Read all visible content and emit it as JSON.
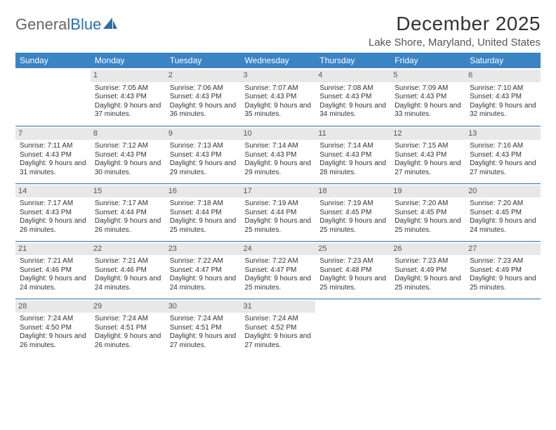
{
  "logo": {
    "part1": "General",
    "part2": "Blue"
  },
  "title": "December 2025",
  "location": "Lake Shore, Maryland, United States",
  "colors": {
    "header_bg": "#3a84c4",
    "header_text": "#ffffff",
    "separator": "#2f6fa8",
    "daynum_bg": "#e8e8e8",
    "text": "#333333",
    "logo_accent": "#2f6fa8"
  },
  "day_headers": [
    "Sunday",
    "Monday",
    "Tuesday",
    "Wednesday",
    "Thursday",
    "Friday",
    "Saturday"
  ],
  "weeks": [
    [
      null,
      {
        "n": "1",
        "sr": "7:05 AM",
        "ss": "4:43 PM",
        "dl": "9 hours and 37 minutes."
      },
      {
        "n": "2",
        "sr": "7:06 AM",
        "ss": "4:43 PM",
        "dl": "9 hours and 36 minutes."
      },
      {
        "n": "3",
        "sr": "7:07 AM",
        "ss": "4:43 PM",
        "dl": "9 hours and 35 minutes."
      },
      {
        "n": "4",
        "sr": "7:08 AM",
        "ss": "4:43 PM",
        "dl": "9 hours and 34 minutes."
      },
      {
        "n": "5",
        "sr": "7:09 AM",
        "ss": "4:43 PM",
        "dl": "9 hours and 33 minutes."
      },
      {
        "n": "6",
        "sr": "7:10 AM",
        "ss": "4:43 PM",
        "dl": "9 hours and 32 minutes."
      }
    ],
    [
      {
        "n": "7",
        "sr": "7:11 AM",
        "ss": "4:43 PM",
        "dl": "9 hours and 31 minutes."
      },
      {
        "n": "8",
        "sr": "7:12 AM",
        "ss": "4:43 PM",
        "dl": "9 hours and 30 minutes."
      },
      {
        "n": "9",
        "sr": "7:13 AM",
        "ss": "4:43 PM",
        "dl": "9 hours and 29 minutes."
      },
      {
        "n": "10",
        "sr": "7:14 AM",
        "ss": "4:43 PM",
        "dl": "9 hours and 29 minutes."
      },
      {
        "n": "11",
        "sr": "7:14 AM",
        "ss": "4:43 PM",
        "dl": "9 hours and 28 minutes."
      },
      {
        "n": "12",
        "sr": "7:15 AM",
        "ss": "4:43 PM",
        "dl": "9 hours and 27 minutes."
      },
      {
        "n": "13",
        "sr": "7:16 AM",
        "ss": "4:43 PM",
        "dl": "9 hours and 27 minutes."
      }
    ],
    [
      {
        "n": "14",
        "sr": "7:17 AM",
        "ss": "4:43 PM",
        "dl": "9 hours and 26 minutes."
      },
      {
        "n": "15",
        "sr": "7:17 AM",
        "ss": "4:44 PM",
        "dl": "9 hours and 26 minutes."
      },
      {
        "n": "16",
        "sr": "7:18 AM",
        "ss": "4:44 PM",
        "dl": "9 hours and 25 minutes."
      },
      {
        "n": "17",
        "sr": "7:19 AM",
        "ss": "4:44 PM",
        "dl": "9 hours and 25 minutes."
      },
      {
        "n": "18",
        "sr": "7:19 AM",
        "ss": "4:45 PM",
        "dl": "9 hours and 25 minutes."
      },
      {
        "n": "19",
        "sr": "7:20 AM",
        "ss": "4:45 PM",
        "dl": "9 hours and 25 minutes."
      },
      {
        "n": "20",
        "sr": "7:20 AM",
        "ss": "4:45 PM",
        "dl": "9 hours and 24 minutes."
      }
    ],
    [
      {
        "n": "21",
        "sr": "7:21 AM",
        "ss": "4:46 PM",
        "dl": "9 hours and 24 minutes."
      },
      {
        "n": "22",
        "sr": "7:21 AM",
        "ss": "4:46 PM",
        "dl": "9 hours and 24 minutes."
      },
      {
        "n": "23",
        "sr": "7:22 AM",
        "ss": "4:47 PM",
        "dl": "9 hours and 24 minutes."
      },
      {
        "n": "24",
        "sr": "7:22 AM",
        "ss": "4:47 PM",
        "dl": "9 hours and 25 minutes."
      },
      {
        "n": "25",
        "sr": "7:23 AM",
        "ss": "4:48 PM",
        "dl": "9 hours and 25 minutes."
      },
      {
        "n": "26",
        "sr": "7:23 AM",
        "ss": "4:49 PM",
        "dl": "9 hours and 25 minutes."
      },
      {
        "n": "27",
        "sr": "7:23 AM",
        "ss": "4:49 PM",
        "dl": "9 hours and 25 minutes."
      }
    ],
    [
      {
        "n": "28",
        "sr": "7:24 AM",
        "ss": "4:50 PM",
        "dl": "9 hours and 26 minutes."
      },
      {
        "n": "29",
        "sr": "7:24 AM",
        "ss": "4:51 PM",
        "dl": "9 hours and 26 minutes."
      },
      {
        "n": "30",
        "sr": "7:24 AM",
        "ss": "4:51 PM",
        "dl": "9 hours and 27 minutes."
      },
      {
        "n": "31",
        "sr": "7:24 AM",
        "ss": "4:52 PM",
        "dl": "9 hours and 27 minutes."
      },
      null,
      null,
      null
    ]
  ],
  "labels": {
    "sunrise": "Sunrise:",
    "sunset": "Sunset:",
    "daylight": "Daylight:"
  }
}
